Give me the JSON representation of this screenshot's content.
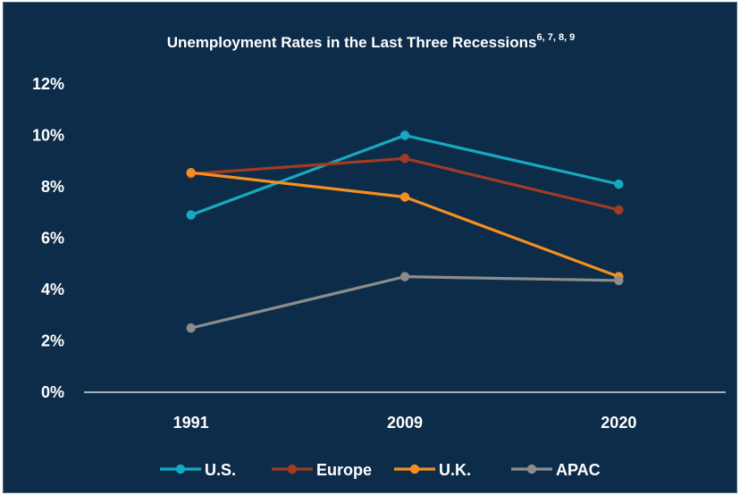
{
  "chart_data": {
    "type": "line",
    "title": "Unemployment  Rates in the Last Three Recessions",
    "title_superscript": "6, 7, 8, 9",
    "categories": [
      "1991",
      "2009",
      "2020"
    ],
    "ylim": [
      0,
      12
    ],
    "yticks": [
      0,
      2,
      4,
      6,
      8,
      10,
      12
    ],
    "ytick_labels": [
      "0%",
      "2%",
      "4%",
      "6%",
      "8%",
      "10%",
      "12%"
    ],
    "xlabel": "",
    "ylabel": "",
    "grid": false,
    "legend_position": "bottom",
    "series": [
      {
        "name": "U.S.",
        "color": "#17a9c2",
        "values": [
          6.9,
          10.0,
          8.1
        ]
      },
      {
        "name": "Europe",
        "color": "#a33b20",
        "values": [
          8.5,
          9.1,
          7.1
        ]
      },
      {
        "name": "U.K.",
        "color": "#f5901e",
        "values": [
          8.55,
          7.6,
          4.5
        ]
      },
      {
        "name": "APAC",
        "color": "#8c8c8c",
        "values": [
          2.5,
          4.5,
          4.35
        ]
      }
    ],
    "background_color": "#0d2c4a",
    "text_color": "#ffffff"
  }
}
